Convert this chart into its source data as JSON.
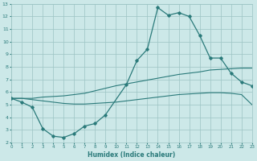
{
  "xlabel": "Humidex (Indice chaleur)",
  "bg_color": "#cce8e8",
  "grid_color": "#9cc4c4",
  "line_color": "#2a7a7a",
  "xlim": [
    0,
    23
  ],
  "ylim": [
    2,
    13
  ],
  "xticks": [
    0,
    1,
    2,
    3,
    4,
    5,
    6,
    7,
    8,
    9,
    10,
    11,
    12,
    13,
    14,
    15,
    16,
    17,
    18,
    19,
    20,
    21,
    22,
    23
  ],
  "yticks": [
    2,
    3,
    4,
    5,
    6,
    7,
    8,
    9,
    10,
    11,
    12,
    13
  ],
  "marker_line_x": [
    0,
    1,
    2,
    3,
    4,
    5,
    6,
    7,
    8,
    9,
    11,
    12,
    13,
    14,
    15,
    16,
    17,
    18,
    19,
    20,
    21,
    22,
    23
  ],
  "marker_line_y": [
    5.5,
    5.2,
    4.8,
    3.1,
    2.5,
    2.4,
    2.7,
    3.3,
    3.5,
    4.2,
    6.6,
    8.5,
    9.4,
    12.7,
    12.1,
    12.3,
    12.0,
    10.5,
    8.7,
    8.7,
    7.5,
    6.8,
    6.5
  ],
  "smooth_upper_x": [
    0,
    1,
    2,
    3,
    4,
    5,
    6,
    7,
    8,
    9,
    10,
    11,
    12,
    13,
    14,
    15,
    16,
    17,
    18,
    19,
    20,
    21,
    22,
    23
  ],
  "smooth_upper_y": [
    5.5,
    5.5,
    5.5,
    5.6,
    5.65,
    5.7,
    5.8,
    5.9,
    6.1,
    6.3,
    6.5,
    6.65,
    6.8,
    6.95,
    7.1,
    7.25,
    7.4,
    7.5,
    7.6,
    7.75,
    7.8,
    7.85,
    7.9,
    7.9
  ],
  "smooth_lower_x": [
    0,
    1,
    2,
    3,
    4,
    5,
    6,
    7,
    8,
    9,
    10,
    11,
    12,
    13,
    14,
    15,
    16,
    17,
    18,
    19,
    20,
    21,
    22,
    23
  ],
  "smooth_lower_y": [
    5.5,
    5.5,
    5.4,
    5.3,
    5.2,
    5.1,
    5.05,
    5.05,
    5.1,
    5.15,
    5.2,
    5.3,
    5.4,
    5.5,
    5.6,
    5.7,
    5.8,
    5.85,
    5.9,
    5.95,
    5.95,
    5.9,
    5.8,
    5.0
  ]
}
